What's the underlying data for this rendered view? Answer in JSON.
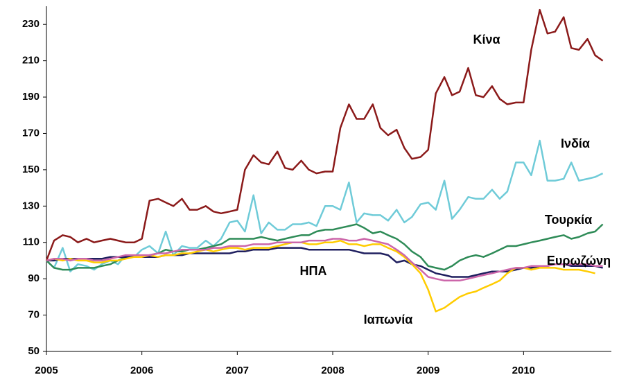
{
  "chart_data": {
    "type": "line",
    "x": [
      2005,
      2005.08,
      2005.17,
      2005.25,
      2005.33,
      2005.42,
      2005.5,
      2005.58,
      2005.67,
      2005.75,
      2005.83,
      2005.92,
      2006,
      2006.08,
      2006.17,
      2006.25,
      2006.33,
      2006.42,
      2006.5,
      2006.58,
      2006.67,
      2006.75,
      2006.83,
      2006.92,
      2007,
      2007.08,
      2007.17,
      2007.25,
      2007.33,
      2007.42,
      2007.5,
      2007.58,
      2007.67,
      2007.75,
      2007.83,
      2007.92,
      2008,
      2008.08,
      2008.17,
      2008.25,
      2008.33,
      2008.42,
      2008.5,
      2008.58,
      2008.67,
      2008.75,
      2008.83,
      2008.92,
      2009,
      2009.08,
      2009.17,
      2009.25,
      2009.33,
      2009.42,
      2009.5,
      2009.58,
      2009.67,
      2009.75,
      2009.83,
      2009.92,
      2010,
      2010.08,
      2010.17,
      2010.25,
      2010.33,
      2010.42,
      2010.5,
      2010.58,
      2010.67,
      2010.75,
      2010.83
    ],
    "series": [
      {
        "name": "Κίνα",
        "color": "#8b1a1a",
        "values": [
          100,
          111,
          114,
          113,
          110,
          112,
          110,
          111,
          112,
          111,
          110,
          110,
          112,
          133,
          134,
          132,
          130,
          134,
          128,
          128,
          130,
          127,
          126,
          127,
          128,
          150,
          158,
          154,
          153,
          160,
          151,
          150,
          155,
          150,
          148,
          149,
          149,
          173,
          186,
          178,
          178,
          186,
          173,
          169,
          172,
          162,
          156,
          157,
          161,
          192,
          201,
          191,
          193,
          206,
          191,
          190,
          196,
          189,
          186,
          187,
          187,
          216,
          238,
          225,
          226,
          234,
          217,
          216,
          222,
          213,
          210
        ]
      },
      {
        "name": "Ινδία",
        "color": "#6fcbd8",
        "values": [
          100,
          96,
          107,
          94,
          98,
          97,
          95,
          98,
          100,
          98,
          103,
          102,
          106,
          108,
          104,
          116,
          103,
          108,
          107,
          107,
          111,
          108,
          112,
          121,
          122,
          116,
          136,
          115,
          121,
          117,
          117,
          120,
          120,
          121,
          119,
          130,
          130,
          128,
          143,
          121,
          126,
          125,
          125,
          122,
          128,
          121,
          124,
          131,
          132,
          128,
          144,
          123,
          128,
          135,
          134,
          134,
          139,
          134,
          138,
          154,
          154,
          147,
          166,
          144,
          144,
          145,
          154,
          144,
          145,
          146,
          148
        ]
      },
      {
        "name": "Τουρκία",
        "color": "#2e8b57",
        "values": [
          100,
          96,
          95,
          95,
          96,
          96,
          96,
          97,
          98,
          100,
          102,
          102,
          102,
          103,
          104,
          106,
          105,
          105,
          106,
          106,
          107,
          108,
          109,
          112,
          112,
          112,
          112,
          113,
          112,
          111,
          112,
          113,
          114,
          114,
          116,
          117,
          117,
          118,
          119,
          120,
          118,
          115,
          116,
          114,
          112,
          109,
          105,
          102,
          97,
          96,
          95,
          97,
          100,
          102,
          103,
          102,
          104,
          106,
          108,
          108,
          109,
          110,
          111,
          112,
          113,
          114,
          112,
          113,
          115,
          116,
          120
        ]
      },
      {
        "name": "ΗΠΑ",
        "color": "#1f1f5f",
        "values": [
          100,
          100,
          101,
          101,
          101,
          101,
          101,
          101,
          102,
          102,
          102,
          102,
          102,
          102,
          102,
          103,
          103,
          103,
          104,
          104,
          104,
          104,
          104,
          104,
          105,
          105,
          106,
          106,
          106,
          107,
          107,
          107,
          107,
          106,
          106,
          106,
          106,
          106,
          106,
          105,
          104,
          104,
          104,
          103,
          99,
          100,
          98,
          97,
          95,
          93,
          92,
          91,
          91,
          91,
          92,
          93,
          94,
          94,
          94,
          95,
          96,
          96,
          97,
          97,
          98,
          98,
          97,
          97,
          97,
          97,
          96
        ]
      },
      {
        "name": "Ιαπωνία",
        "color": "#ffcc00",
        "values": [
          100,
          101,
          100,
          101,
          100,
          100,
          99,
          99,
          100,
          100,
          101,
          102,
          102,
          103,
          102,
          103,
          103,
          104,
          104,
          105,
          106,
          105,
          106,
          107,
          107,
          106,
          107,
          107,
          107,
          108,
          109,
          110,
          110,
          109,
          109,
          110,
          110,
          111,
          109,
          109,
          108,
          109,
          109,
          107,
          105,
          102,
          98,
          93,
          84,
          72,
          74,
          77,
          80,
          82,
          83,
          85,
          87,
          89,
          93,
          96,
          96,
          95,
          96,
          96,
          96,
          95,
          95,
          95,
          94,
          93,
          null
        ]
      },
      {
        "name": "Ευρωζώνη",
        "color": "#cc66aa",
        "values": [
          100,
          101,
          101,
          100,
          101,
          101,
          100,
          100,
          101,
          102,
          103,
          103,
          103,
          103,
          104,
          104,
          105,
          106,
          106,
          106,
          106,
          107,
          107,
          108,
          108,
          108,
          109,
          109,
          109,
          110,
          110,
          110,
          110,
          111,
          111,
          111,
          112,
          112,
          111,
          111,
          112,
          111,
          110,
          109,
          106,
          103,
          99,
          95,
          91,
          90,
          89,
          89,
          89,
          90,
          91,
          92,
          93,
          94,
          95,
          96,
          96,
          97,
          97,
          97,
          98,
          98,
          98,
          98,
          98,
          97,
          97
        ]
      }
    ],
    "xlim": [
      2005,
      2010.92
    ],
    "xticks": [
      2005,
      2006,
      2007,
      2008,
      2009,
      2010
    ],
    "ylim": [
      50,
      240
    ],
    "yticks": [
      50,
      70,
      90,
      110,
      130,
      150,
      170,
      190,
      210,
      230
    ]
  }
}
